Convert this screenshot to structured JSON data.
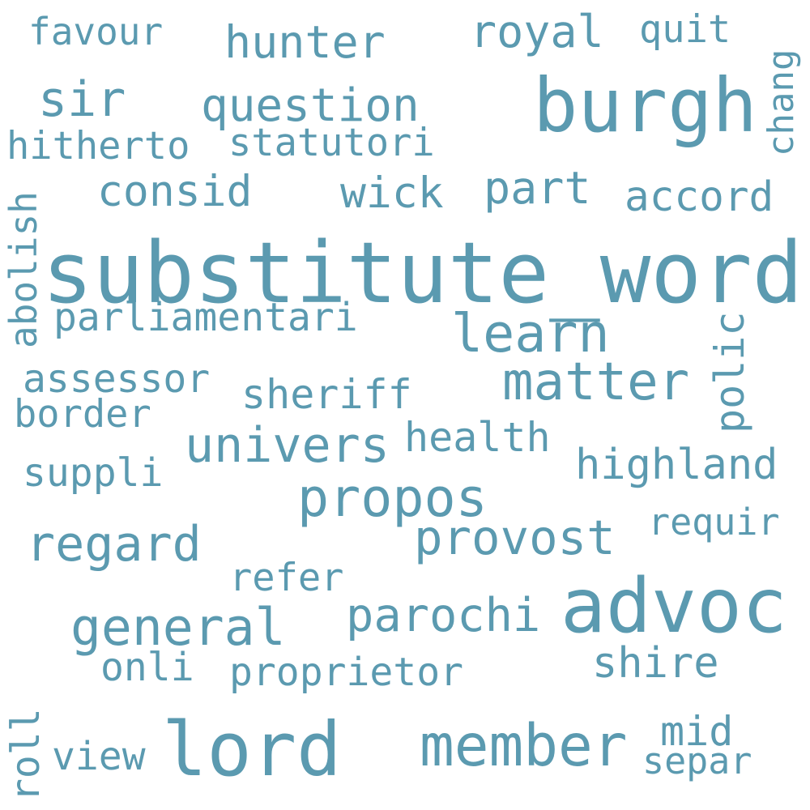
{
  "wordcloud": {
    "color": "#5b9ab0",
    "background": "#ffffff",
    "words": {
      "substitute_word": "substitute_word",
      "burgh": "burgh",
      "advoc": "advoc",
      "lord": "lord",
      "member": "member",
      "propos": "propos",
      "provost": "provost",
      "matter": "matter",
      "learn": "learn",
      "univers": "univers",
      "general": "general",
      "regard": "regard",
      "parochi": "parochi",
      "question": "question",
      "hunter": "hunter",
      "royal": "royal",
      "consid": "consid",
      "accord": "accord",
      "part": "part",
      "wick": "wick",
      "statutori": "statutori",
      "hitherto": "hitherto",
      "sir": "sir",
      "favour": "favour",
      "quit": "quit",
      "chang": "chang",
      "abolish": "abolish",
      "parliamentari": "parliamentari",
      "assessor": "assessor",
      "sheriff": "sheriff",
      "border": "border",
      "health": "health",
      "highland": "highland",
      "polic": "polic",
      "suppli": "suppli",
      "requir": "requir",
      "refer": "refer",
      "shire": "shire",
      "onli": "onli",
      "proprietor": "proprietor",
      "mid": "mid",
      "separ": "separ",
      "view": "view",
      "roll": "roll"
    }
  }
}
